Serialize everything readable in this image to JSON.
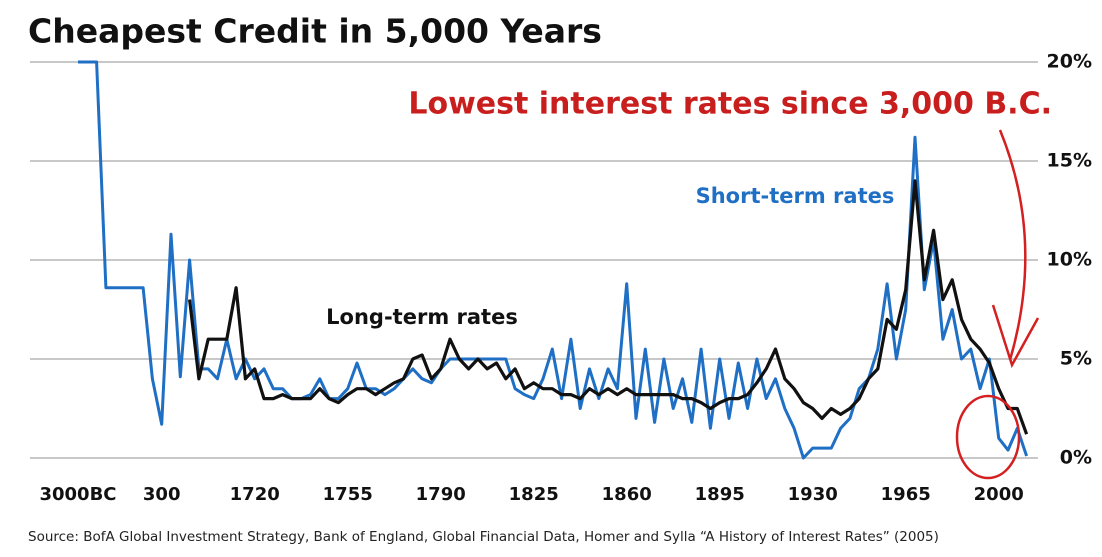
{
  "chart_data": {
    "type": "line",
    "title": "Cheapest Credit in 5,000 Years",
    "annotation": "Lowest interest rates since 3,000 B.C.",
    "source": "Source: BofA Global Investment Strategy, Bank of England, Global Financial Data, Homer and Sylla “A History of Interest Rates” (2005)",
    "categories": [
      "3000BC",
      null,
      null,
      null,
      null,
      null,
      null,
      null,
      null,
      "300",
      null,
      null,
      null,
      null,
      null,
      null,
      null,
      null,
      null,
      "1720",
      null,
      null,
      null,
      null,
      null,
      null,
      null,
      null,
      null,
      "1755",
      null,
      null,
      null,
      null,
      null,
      null,
      null,
      null,
      null,
      "1790",
      null,
      null,
      null,
      null,
      null,
      null,
      null,
      null,
      null,
      "1825",
      null,
      null,
      null,
      null,
      null,
      null,
      null,
      null,
      null,
      "1860",
      null,
      null,
      null,
      null,
      null,
      null,
      null,
      null,
      null,
      "1895",
      null,
      null,
      null,
      null,
      null,
      null,
      null,
      null,
      null,
      "1930",
      null,
      null,
      null,
      null,
      null,
      null,
      null,
      null,
      null,
      "1965",
      null,
      null,
      null,
      null,
      null,
      null,
      null,
      null,
      null,
      "2000",
      null,
      null,
      null
    ],
    "series": [
      {
        "name": "Short-term rates",
        "color": "#1f6fc5",
        "values": [
          20,
          20,
          20,
          8.6,
          8.6,
          8.6,
          8.6,
          8.6,
          4,
          1.7,
          11.3,
          4.1,
          10,
          4.5,
          4.5,
          4,
          6,
          4,
          5,
          4,
          4.5,
          3.5,
          3.5,
          3,
          3,
          3.2,
          4,
          3,
          3,
          3.5,
          4.8,
          3.5,
          3.5,
          3.2,
          3.5,
          4,
          4.5,
          4,
          3.8,
          4.5,
          5,
          5,
          5,
          5,
          5,
          5,
          5,
          3.5,
          3.2,
          3,
          4,
          5.5,
          3,
          6,
          2.5,
          4.5,
          3,
          4.5,
          3.5,
          8.8,
          2,
          5.5,
          1.8,
          5,
          2.5,
          4,
          1.8,
          5.5,
          1.5,
          5,
          2,
          4.8,
          2.5,
          5,
          3,
          4,
          2.5,
          1.5,
          0,
          0.5,
          0.5,
          0.5,
          1.5,
          2,
          3.5,
          4,
          5.5,
          8.8,
          5,
          7.5,
          16.2,
          8.5,
          11,
          6,
          7.5,
          5,
          5.5,
          3.5,
          5,
          1,
          0.4,
          1.5,
          0.1
        ]
      },
      {
        "name": "Long-term rates",
        "color": "#111111",
        "values": [
          null,
          null,
          null,
          null,
          null,
          null,
          null,
          null,
          null,
          null,
          null,
          null,
          8,
          4,
          6,
          6,
          6,
          8.6,
          4,
          4.5,
          3,
          3,
          3.2,
          3,
          3,
          3,
          3.5,
          3,
          2.8,
          3.2,
          3.5,
          3.5,
          3.2,
          3.5,
          3.8,
          4,
          5,
          5.2,
          4,
          4.5,
          6,
          5,
          4.5,
          5,
          4.5,
          4.8,
          4,
          4.5,
          3.5,
          3.8,
          3.5,
          3.5,
          3.2,
          3.2,
          3,
          3.5,
          3.2,
          3.5,
          3.2,
          3.5,
          3.2,
          3.2,
          3.2,
          3.2,
          3.2,
          3,
          3,
          2.8,
          2.5,
          2.8,
          3,
          3,
          3.2,
          3.8,
          4.5,
          5.5,
          4,
          3.5,
          2.8,
          2.5,
          2,
          2.5,
          2.2,
          2.5,
          3,
          4,
          4.5,
          7,
          6.5,
          8.5,
          14,
          9,
          11.5,
          8,
          9,
          7,
          6,
          5.5,
          4.8,
          3.5,
          2.5,
          2.5,
          1.2
        ]
      }
    ],
    "ylim": [
      0,
      20
    ],
    "yticks": [
      {
        "value": 0,
        "label": "0%"
      },
      {
        "value": 5,
        "label": "5%"
      },
      {
        "value": 10,
        "label": "10%"
      },
      {
        "value": 15,
        "label": "15%"
      },
      {
        "value": 20,
        "label": "20%"
      }
    ],
    "grid": true
  }
}
